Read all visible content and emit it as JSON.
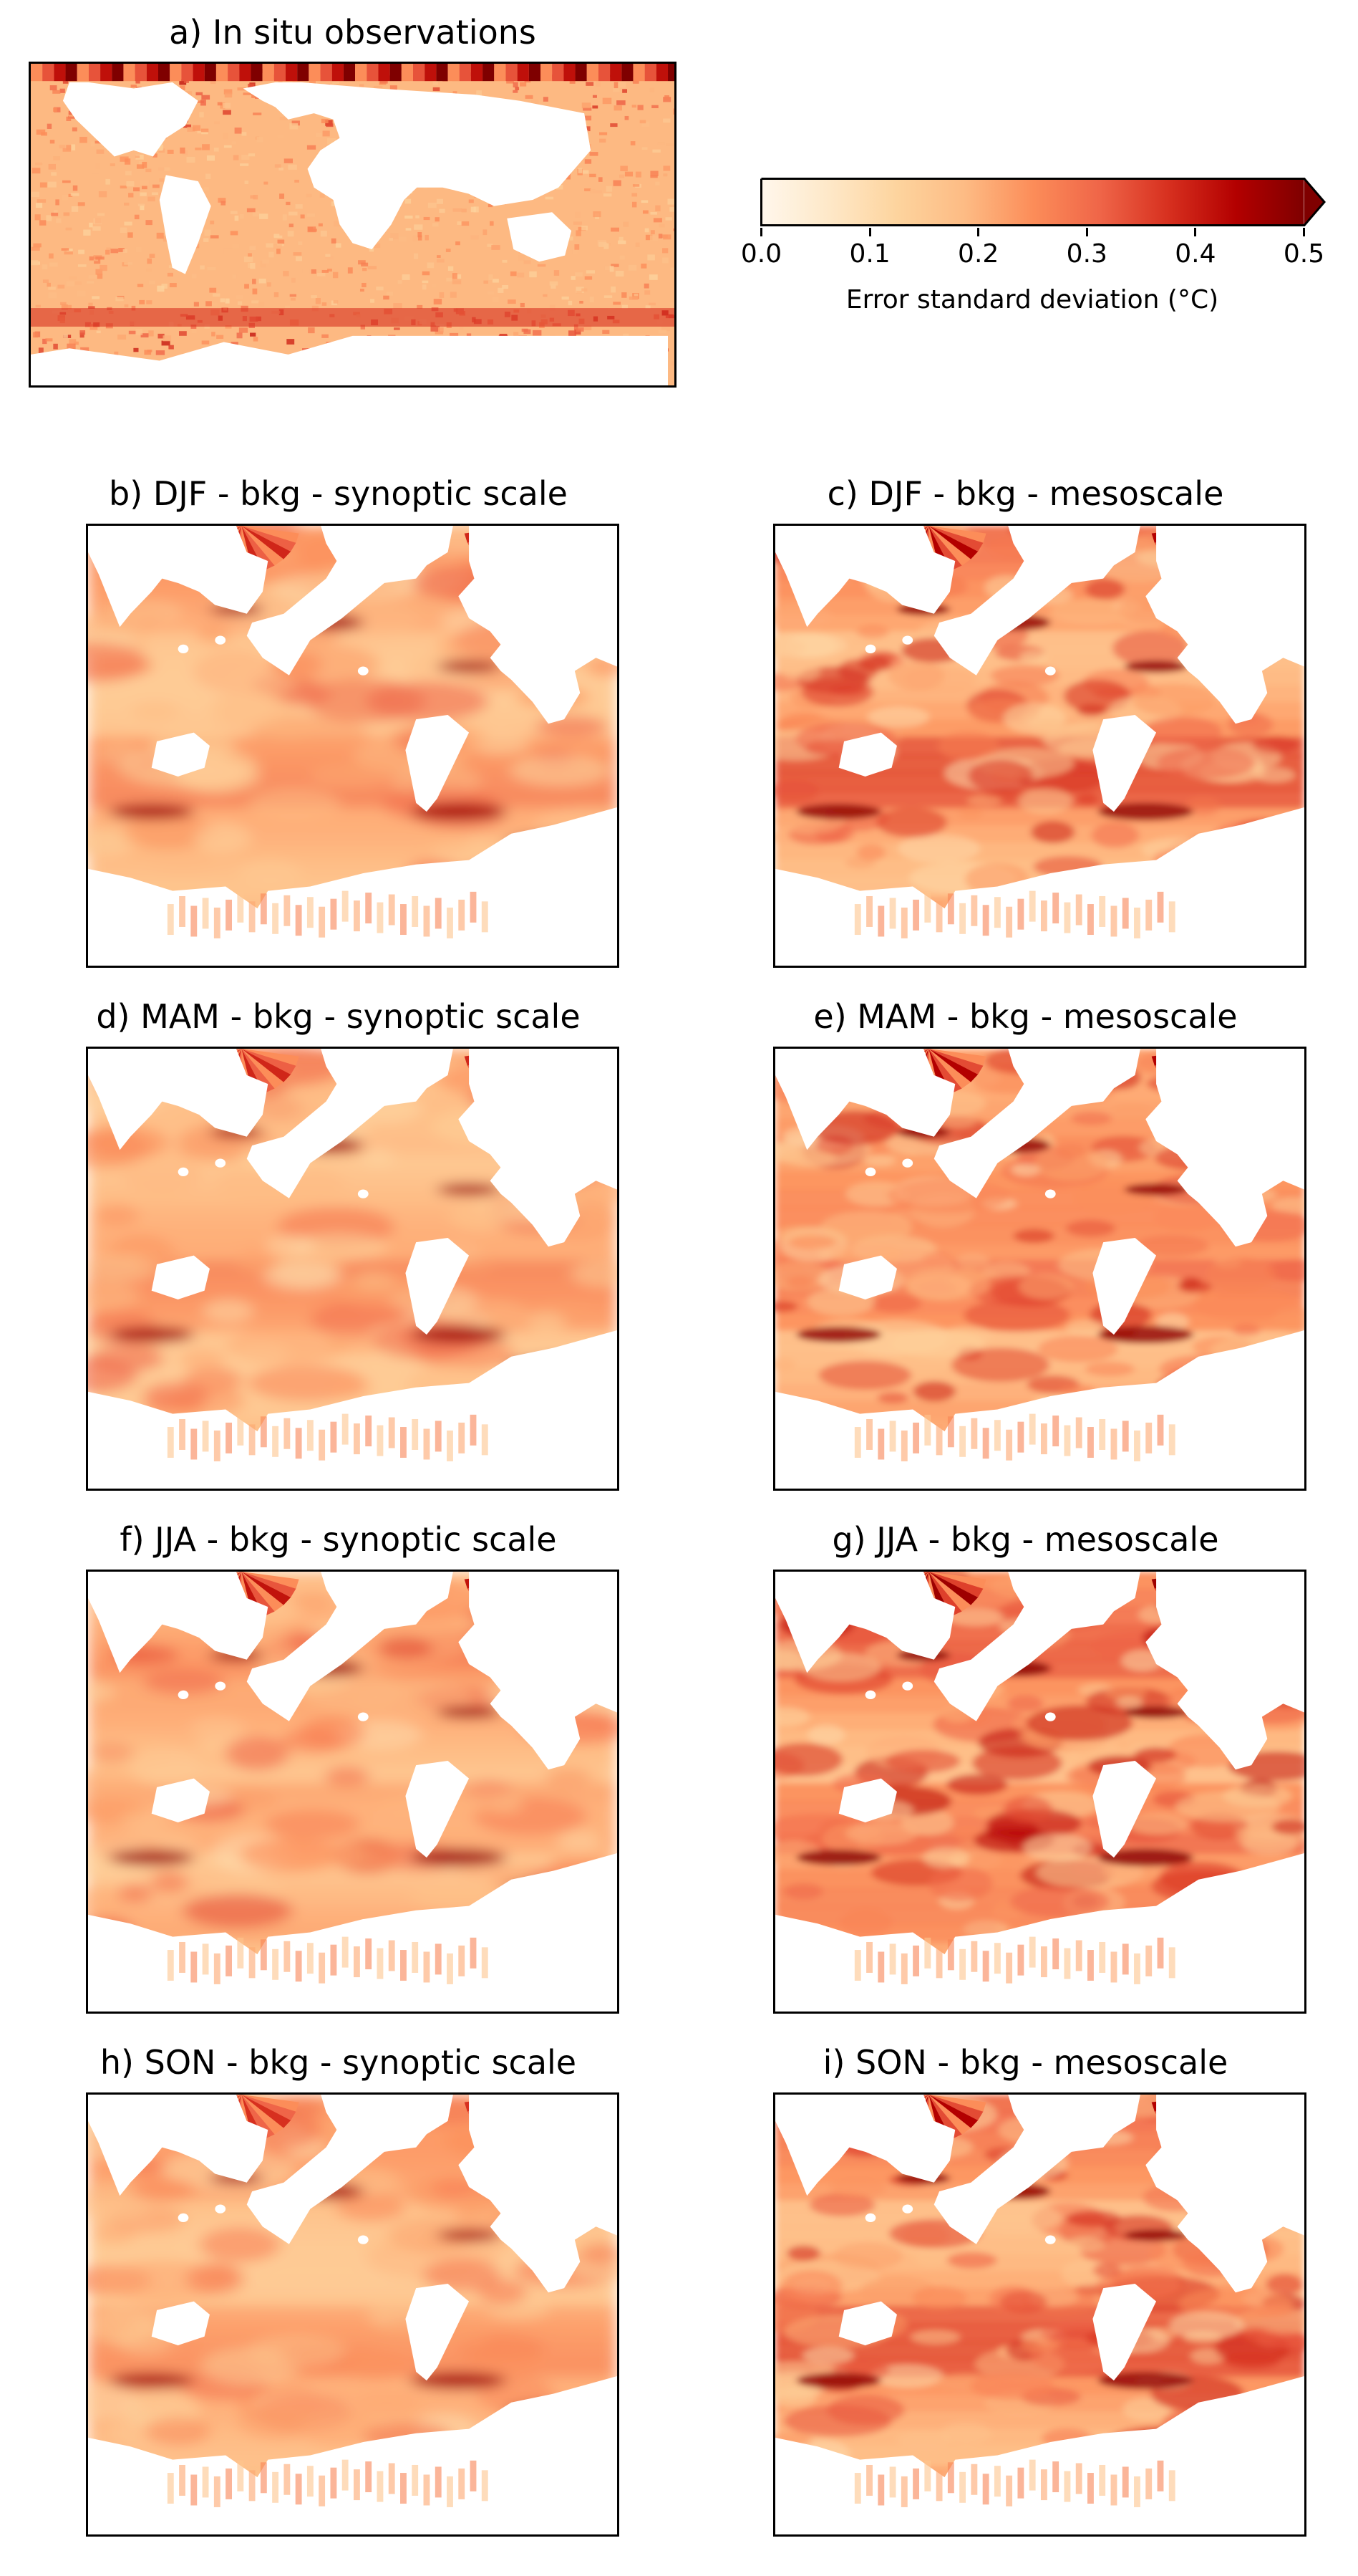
{
  "panels": [
    {
      "id": "a",
      "title": "a) In situ observations",
      "kind": "obs"
    },
    {
      "id": "b",
      "title": "b) DJF - bkg - synoptic scale",
      "season": "DJF",
      "scale": "synoptic",
      "intensity": 0.55
    },
    {
      "id": "c",
      "title": "c) DJF - bkg - mesoscale",
      "season": "DJF",
      "scale": "mesoscale",
      "intensity": 0.75
    },
    {
      "id": "d",
      "title": "d) MAM - bkg - synoptic scale",
      "season": "MAM",
      "scale": "synoptic",
      "intensity": 0.55
    },
    {
      "id": "e",
      "title": "e) MAM - bkg - mesoscale",
      "season": "MAM",
      "scale": "mesoscale",
      "intensity": 0.75
    },
    {
      "id": "f",
      "title": "f) JJA - bkg - synoptic scale",
      "season": "JJA",
      "scale": "synoptic",
      "intensity": 0.65
    },
    {
      "id": "g",
      "title": "g) JJA - bkg - mesoscale",
      "season": "JJA",
      "scale": "mesoscale",
      "intensity": 0.85
    },
    {
      "id": "h",
      "title": "h) SON - bkg - synoptic scale",
      "season": "SON",
      "scale": "synoptic",
      "intensity": 0.5
    },
    {
      "id": "i",
      "title": "i) SON - bkg - mesoscale",
      "season": "SON",
      "scale": "mesoscale",
      "intensity": 0.75
    }
  ],
  "colorbar": {
    "label": "Error standard deviation (°C)",
    "ticks": [
      "0.0",
      "0.1",
      "0.2",
      "0.3",
      "0.4",
      "0.5"
    ],
    "range": [
      0.0,
      0.5
    ],
    "extend": "max",
    "colormap": "OrRd",
    "colors": [
      "#fff7ec",
      "#fee8c8",
      "#fdd49e",
      "#fdbb84",
      "#fc8d59",
      "#ef6548",
      "#d7301f",
      "#b30000",
      "#7f0000"
    ]
  },
  "chart_data": {
    "type": "heatmap",
    "variable": "Error standard deviation (°C)",
    "vmin": 0.0,
    "vmax": 0.5,
    "colormap": "OrRd",
    "panels": [
      "a) In situ observations",
      "b) DJF - bkg - synoptic scale",
      "c) DJF - bkg - mesoscale",
      "d) MAM - bkg - synoptic scale",
      "e) MAM - bkg - mesoscale",
      "f) JJA - bkg - synoptic scale",
      "g) JJA - bkg - mesoscale",
      "h) SON - bkg - synoptic scale",
      "i) SON - bkg - mesoscale"
    ]
  }
}
